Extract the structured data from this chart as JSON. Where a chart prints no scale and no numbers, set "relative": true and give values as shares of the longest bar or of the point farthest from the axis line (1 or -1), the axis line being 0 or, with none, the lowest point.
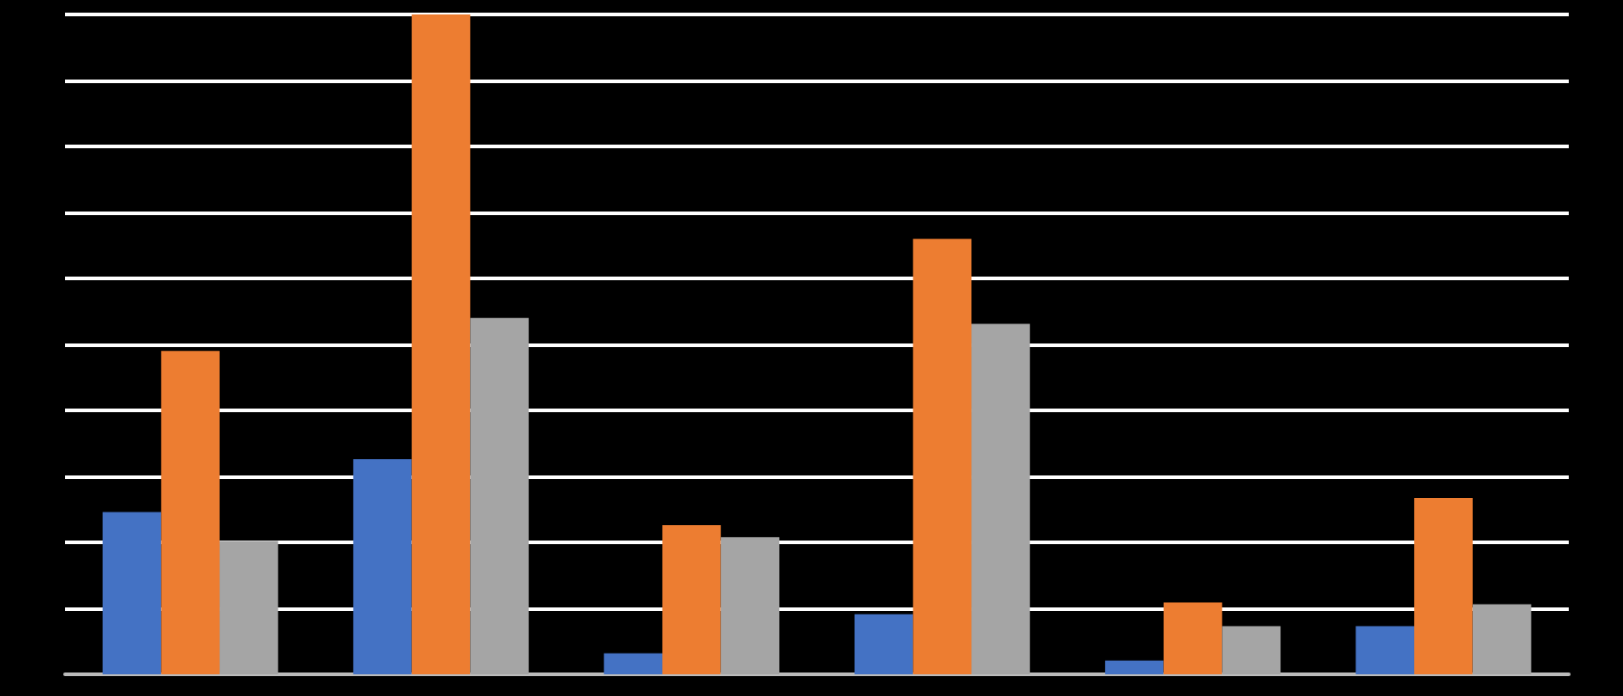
{
  "chart_data": {
    "type": "bar",
    "relative": true,
    "grid": "y",
    "categories": [
      null,
      null,
      null,
      null,
      null,
      null
    ],
    "series": [
      {
        "color": "#4472c4",
        "values": [
          0.246,
          0.326,
          0.032,
          0.091,
          0.021,
          0.073
        ]
      },
      {
        "color": "#ed7d31",
        "values": [
          0.49,
          1,
          0.226,
          0.66,
          0.109,
          0.267
        ]
      },
      {
        "color": "#a5a5a5",
        "values": [
          0.202,
          0.54,
          0.208,
          0.531,
          0.073,
          0.106
        ]
      }
    ]
  }
}
